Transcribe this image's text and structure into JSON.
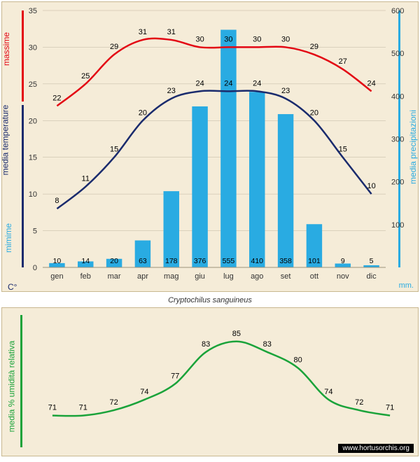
{
  "species_name": "Cryptochilus sanguineus",
  "watermark": "www.hortusorchis.org",
  "months": [
    "gen",
    "feb",
    "mar",
    "apr",
    "mag",
    "giu",
    "lug",
    "ago",
    "set",
    "ott",
    "nov",
    "dic"
  ],
  "colors": {
    "background": "#f5ecd8",
    "grid": "#9c927a",
    "bar": "#29abe2",
    "max_line": "#e30613",
    "min_line": "#1a2b6d",
    "hum_line": "#1aa33a",
    "axis_temp": "#1a2b6d",
    "axis_prec": "#29abe2",
    "axis_hum": "#1aa33a",
    "text": "#333333"
  },
  "top_chart": {
    "type": "combo-bar-line",
    "temp_axis": {
      "min": 0,
      "max": 35,
      "step": 5,
      "label": "media temperature",
      "unit": "C°"
    },
    "prec_axis": {
      "min": 0,
      "max": 600,
      "step": 100,
      "label": "media precipitazioni",
      "unit": "mm."
    },
    "max_label": "massime",
    "min_label": "mimime",
    "temp_max": [
      22,
      25,
      29,
      31,
      31,
      30,
      30,
      30,
      30,
      29,
      27,
      24
    ],
    "temp_min": [
      8,
      11,
      15,
      20,
      23,
      24,
      24,
      24,
      23,
      20,
      15,
      10
    ],
    "precip": [
      10,
      14,
      20,
      63,
      178,
      376,
      555,
      410,
      358,
      101,
      9,
      5
    ],
    "label_fontsize": 11,
    "axis_fontsize": 11,
    "line_width": 2.5,
    "bar_width_ratio": 0.55
  },
  "bottom_chart": {
    "type": "line",
    "y_axis": {
      "min": 65,
      "max": 90,
      "label": "media % umidità relativa"
    },
    "humidity": [
      71,
      71,
      72,
      74,
      77,
      83,
      85,
      83,
      80,
      74,
      72,
      71
    ],
    "label_fontsize": 11,
    "line_width": 2.5
  }
}
